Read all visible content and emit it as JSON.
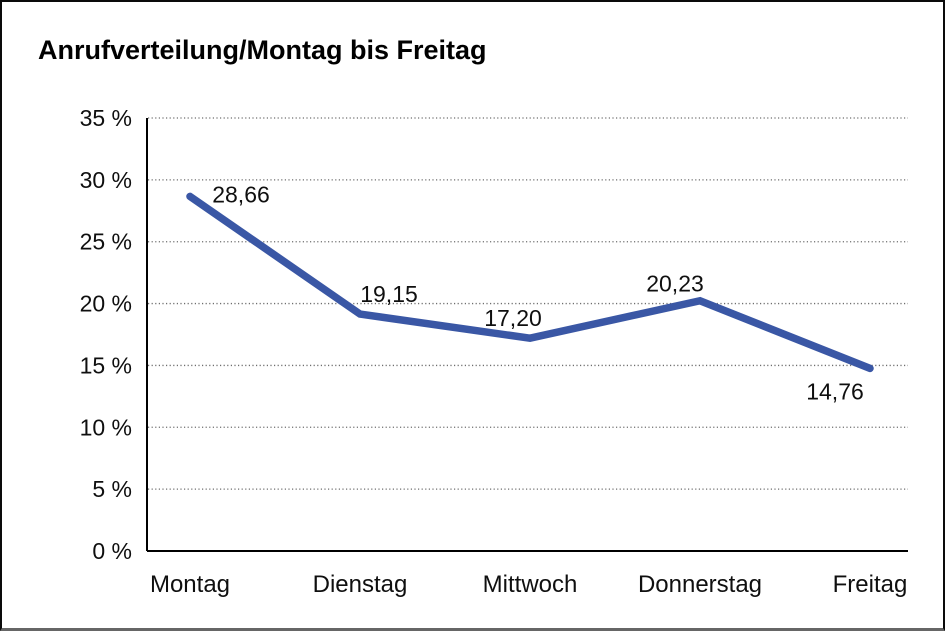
{
  "title": "Anrufverteilung/Montag bis Freitag",
  "chart_data": {
    "type": "line",
    "title": "Anrufverteilung/Montag bis Freitag",
    "categories": [
      "Montag",
      "Dienstag",
      "Mittwoch",
      "Donnerstag",
      "Freitag"
    ],
    "values": [
      28.66,
      19.15,
      17.2,
      20.23,
      14.76
    ],
    "data_labels": [
      "28,66",
      "19,15",
      "17,20",
      "20,23",
      "14,76"
    ],
    "series_name": "Anrufverteilung",
    "xlabel": "",
    "ylabel": "",
    "ylim": [
      0,
      35
    ],
    "ytick_step": 5,
    "ytick_labels": [
      "0 %",
      "5 %",
      "10 %",
      "15 %",
      "20 %",
      "25 %",
      "30 %",
      "35 %"
    ],
    "ytick_suffix": " %",
    "grid": "horizontal-dotted",
    "legend_position": "none",
    "line_color": "#3A57A5",
    "axis_color": "#000000",
    "grid_color": "#6e6e6e",
    "background": "#ffffff"
  }
}
